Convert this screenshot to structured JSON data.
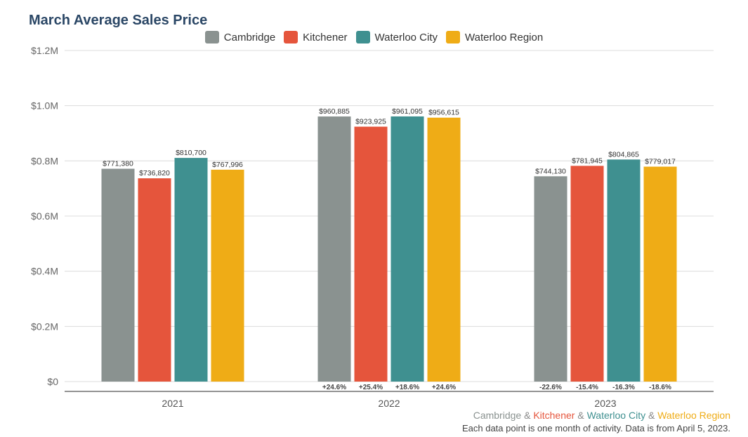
{
  "chart_data": {
    "type": "bar",
    "title": "March Average Sales Price",
    "categories": [
      "2021",
      "2022",
      "2023"
    ],
    "series": [
      {
        "name": "Cambridge",
        "color": "#8a9290",
        "values": [
          771380,
          960885,
          744130
        ],
        "labels": [
          "$771,380",
          "$960,885",
          "$744,130"
        ],
        "changes": [
          "",
          "+24.6%",
          "-22.6%"
        ]
      },
      {
        "name": "Kitchener",
        "color": "#e5553c",
        "values": [
          736820,
          923925,
          781945
        ],
        "labels": [
          "$736,820",
          "$923,925",
          "$781,945"
        ],
        "changes": [
          "",
          "+25.4%",
          "-15.4%"
        ]
      },
      {
        "name": "Waterloo City",
        "color": "#3f9090",
        "values": [
          810700,
          961095,
          804865
        ],
        "labels": [
          "$810,700",
          "$961,095",
          "$804,865"
        ],
        "changes": [
          "",
          "+18.6%",
          "-16.3%"
        ]
      },
      {
        "name": "Waterloo Region",
        "color": "#efac16",
        "values": [
          767996,
          956615,
          779017
        ],
        "labels": [
          "$767,996",
          "$956,615",
          "$779,017"
        ],
        "changes": [
          "",
          "+24.6%",
          "-18.6%"
        ]
      }
    ],
    "ylim": [
      0,
      1200000
    ],
    "yticks": [
      {
        "value": 0,
        "label": "$0"
      },
      {
        "value": 200000,
        "label": "$0.2M"
      },
      {
        "value": 400000,
        "label": "$0.4M"
      },
      {
        "value": 600000,
        "label": "$0.6M"
      },
      {
        "value": 800000,
        "label": "$0.8M"
      },
      {
        "value": 1000000,
        "label": "$1.0M"
      },
      {
        "value": 1200000,
        "label": "$1.2M"
      }
    ],
    "grid": true,
    "legend_position": "top-center"
  },
  "footer": {
    "parts": [
      {
        "text": "Cambridge",
        "color": "#8a9290"
      },
      {
        "text": " & ",
        "color": "#888888"
      },
      {
        "text": "Kitchener",
        "color": "#e5553c"
      },
      {
        "text": " & ",
        "color": "#888888"
      },
      {
        "text": "Waterloo City",
        "color": "#3f9090"
      },
      {
        "text": " & ",
        "color": "#888888"
      },
      {
        "text": "Waterloo Region",
        "color": "#efac16"
      }
    ],
    "note": "Each data point is one month of activity. Data is from April 5, 2023."
  }
}
